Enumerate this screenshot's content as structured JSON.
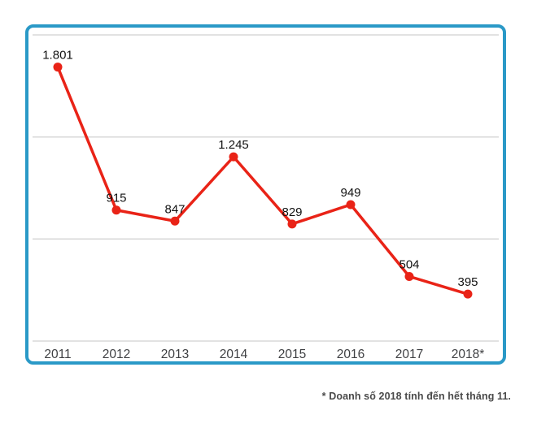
{
  "chart_card": {
    "border_color": "#2a99c7"
  },
  "chart_data": {
    "type": "line",
    "categories": [
      "2011",
      "2012",
      "2013",
      "2014",
      "2015",
      "2016",
      "2017",
      "2018*"
    ],
    "values": [
      1801,
      915,
      847,
      1245,
      829,
      949,
      504,
      395
    ],
    "point_labels": [
      "1.801",
      "915",
      "847",
      "1.245",
      "829",
      "949",
      "504",
      "395"
    ],
    "title": "",
    "xlabel": "",
    "ylabel": "",
    "ylim": [
      104,
      2000
    ],
    "gridlines": 4,
    "grid": "horizontal-only",
    "legend": "none",
    "line_color": "#e92317",
    "marker_color": "#e92317",
    "label_color": "#121212",
    "tick_color": "#3f4043",
    "gridline_color": "#d9d9d9"
  },
  "footnote": {
    "text": "* Doanh số 2018 tính đến hết tháng 11."
  }
}
